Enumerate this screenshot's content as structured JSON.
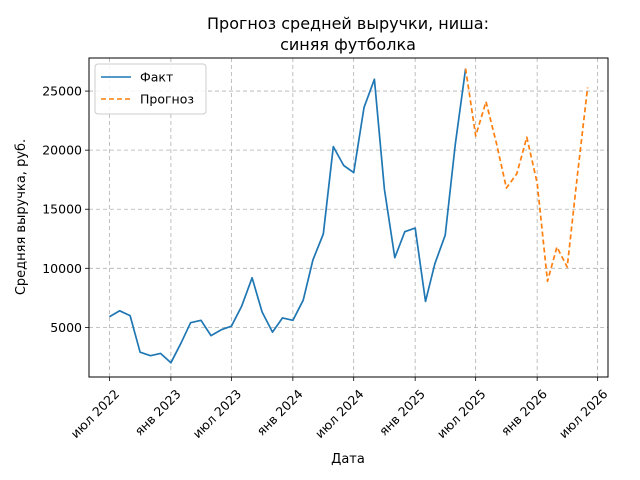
{
  "chart_data": {
    "type": "line",
    "title_line1": "Прогноз средней выручки, ниша:",
    "title_line2": "синяя футболка",
    "xlabel": "Дата",
    "ylabel": "Средняя выручка, руб.",
    "x_range": [
      "2022-05-01",
      "2026-08-01"
    ],
    "ylim": [
      800,
      27800
    ],
    "y_ticks": [
      5000,
      10000,
      15000,
      20000,
      25000
    ],
    "x_ticks": [
      {
        "date": "2022-07-01",
        "label": "июл 2022"
      },
      {
        "date": "2023-01-01",
        "label": "янв 2023"
      },
      {
        "date": "2023-07-01",
        "label": "июл 2023"
      },
      {
        "date": "2024-01-01",
        "label": "янв 2024"
      },
      {
        "date": "2024-07-01",
        "label": "июл 2024"
      },
      {
        "date": "2025-01-01",
        "label": "янв 2025"
      },
      {
        "date": "2025-07-01",
        "label": "июл 2025"
      },
      {
        "date": "2026-01-01",
        "label": "янв 2026"
      },
      {
        "date": "2026-07-01",
        "label": "июл 2026"
      }
    ],
    "grid": true,
    "legend_position": "top-left",
    "series": [
      {
        "name": "Факт",
        "color": "#1f77b4",
        "style": "solid",
        "x": [
          "2022-07-01",
          "2022-08-01",
          "2022-09-01",
          "2022-10-01",
          "2022-11-01",
          "2022-12-01",
          "2023-01-01",
          "2023-02-01",
          "2023-03-01",
          "2023-04-01",
          "2023-05-01",
          "2023-06-01",
          "2023-07-01",
          "2023-08-01",
          "2023-09-01",
          "2023-10-01",
          "2023-11-01",
          "2023-12-01",
          "2024-01-01",
          "2024-02-01",
          "2024-03-01",
          "2024-04-01",
          "2024-05-01",
          "2024-06-01",
          "2024-07-01",
          "2024-08-01",
          "2024-09-01",
          "2024-10-01",
          "2024-11-01",
          "2024-12-01",
          "2025-01-01",
          "2025-02-01",
          "2025-03-01",
          "2025-04-01",
          "2025-05-01",
          "2025-06-01"
        ],
        "values": [
          5900,
          6400,
          6000,
          2900,
          2600,
          2800,
          2000,
          3700,
          5400,
          5600,
          4300,
          4800,
          5100,
          6800,
          9200,
          6300,
          4600,
          5800,
          5600,
          7300,
          10700,
          12900,
          20300,
          18700,
          18100,
          23600,
          26000,
          16700,
          10900,
          13100,
          13400,
          7200,
          10400,
          12800,
          20500,
          26900
        ]
      },
      {
        "name": "Прогноз",
        "color": "#ff7f0e",
        "style": "dashed",
        "x": [
          "2025-06-01",
          "2025-07-01",
          "2025-08-01",
          "2025-09-01",
          "2025-10-01",
          "2025-11-01",
          "2025-12-01",
          "2026-01-01",
          "2026-02-01",
          "2026-03-01",
          "2026-04-01",
          "2026-05-01",
          "2026-06-01"
        ],
        "values": [
          26900,
          21200,
          24100,
          20600,
          16800,
          18000,
          21100,
          17200,
          8900,
          11800,
          10100,
          17800,
          25300
        ]
      }
    ]
  }
}
